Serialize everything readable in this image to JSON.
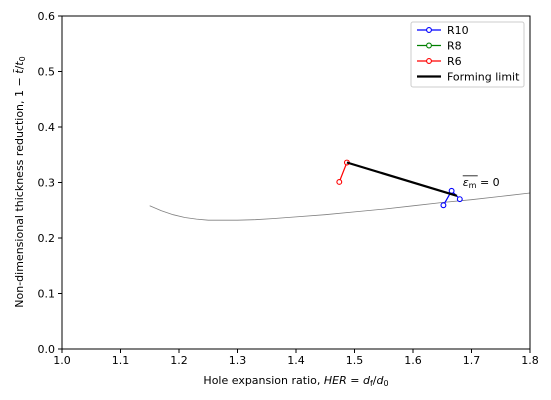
{
  "chart_data": {
    "type": "line",
    "xlabel": "Hole expansion ratio, HER = d_f/d_0",
    "ylabel": "Non-dimensional thickness reduction, 1 − t̄/t_0",
    "xlim": [
      1.0,
      1.8
    ],
    "ylim": [
      0.0,
      0.6
    ],
    "xticks": [
      "1.0",
      "1.1",
      "1.2",
      "1.3",
      "1.4",
      "1.5",
      "1.6",
      "1.7",
      "1.8"
    ],
    "yticks": [
      "0.0",
      "0.1",
      "0.2",
      "0.3",
      "0.4",
      "0.5",
      "0.6"
    ],
    "grid": false,
    "legend_position": "top-right",
    "series": [
      {
        "name": "R10",
        "color": "#0000ff",
        "marker": "circle-open",
        "x": [
          1.652,
          1.666,
          1.68
        ],
        "y": [
          0.259,
          0.285,
          0.27
        ]
      },
      {
        "name": "R8",
        "color": "#008000",
        "marker": "circle-open",
        "x": [],
        "y": []
      },
      {
        "name": "R6",
        "color": "#ff0000",
        "marker": "circle-open",
        "x": [
          1.474,
          1.487
        ],
        "y": [
          0.301,
          0.336
        ]
      },
      {
        "name": "Forming limit",
        "color": "#000000",
        "marker": "none",
        "x": [
          1.487,
          1.675
        ],
        "y": [
          0.336,
          0.276
        ]
      }
    ],
    "reference_curve": {
      "color": "#808080",
      "x": [
        1.15,
        1.17,
        1.19,
        1.21,
        1.23,
        1.25,
        1.27,
        1.3,
        1.33,
        1.36,
        1.4,
        1.45,
        1.5,
        1.55,
        1.6,
        1.65,
        1.7,
        1.75,
        1.8
      ],
      "y": [
        0.258,
        0.249,
        0.242,
        0.237,
        0.234,
        0.232,
        0.232,
        0.232,
        0.233,
        0.235,
        0.238,
        0.242,
        0.247,
        0.252,
        0.258,
        0.264,
        0.269,
        0.275,
        0.281
      ]
    },
    "annotation": {
      "text": "ε̄_m = 0",
      "x": 1.685,
      "y": 0.294
    }
  }
}
